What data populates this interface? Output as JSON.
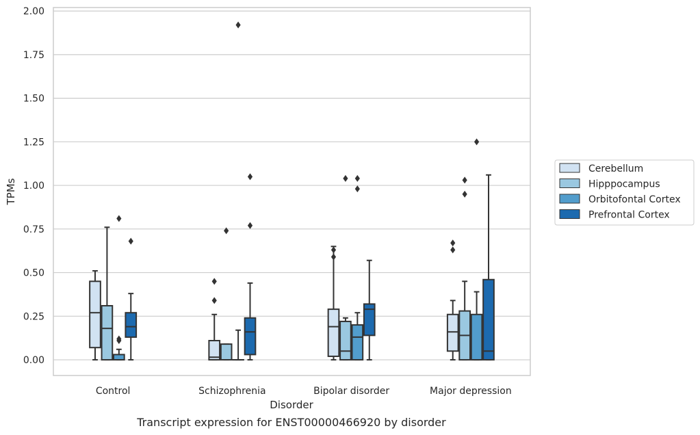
{
  "chart_data": {
    "type": "box",
    "title": "",
    "caption": "Transcript expression for ENST00000466920 by disorder",
    "xlabel": "Disorder",
    "ylabel": "TPMs",
    "ylim": [
      -0.09,
      2.02
    ],
    "yticks": [
      "0.00",
      "0.25",
      "0.50",
      "0.75",
      "1.00",
      "1.25",
      "1.50",
      "1.75",
      "2.00"
    ],
    "grid": "horizontal",
    "legend_position": "right",
    "categories": [
      "Control",
      "Schizophrenia",
      "Bipolar disorder",
      "Major depression"
    ],
    "series": [
      {
        "name": "Cerebellum",
        "color": "#d1e2f2",
        "boxes": [
          {
            "q1": 0.07,
            "median": 0.27,
            "q3": 0.45,
            "low": 0.0,
            "high": 0.51,
            "outliers": []
          },
          {
            "q1": 0.0,
            "median": 0.015,
            "q3": 0.11,
            "low": 0.0,
            "high": 0.26,
            "outliers": [
              0.34,
              0.45
            ]
          },
          {
            "q1": 0.02,
            "median": 0.19,
            "q3": 0.29,
            "low": 0.0,
            "high": 0.65,
            "outliers": [
              0.59,
              0.63
            ]
          },
          {
            "q1": 0.05,
            "median": 0.16,
            "q3": 0.26,
            "low": 0.0,
            "high": 0.34,
            "outliers": [
              0.63,
              0.67
            ]
          }
        ]
      },
      {
        "name": "Hipppocampus",
        "color": "#9ac8e0",
        "boxes": [
          {
            "q1": 0.0,
            "median": 0.18,
            "q3": 0.31,
            "low": 0.0,
            "high": 0.76,
            "outliers": []
          },
          {
            "q1": 0.0,
            "median": 0.0,
            "q3": 0.09,
            "low": 0.0,
            "high": 0.09,
            "outliers": [
              0.74
            ]
          },
          {
            "q1": 0.0,
            "median": 0.05,
            "q3": 0.22,
            "low": 0.0,
            "high": 0.24,
            "outliers": [
              1.04
            ]
          },
          {
            "q1": 0.0,
            "median": 0.14,
            "q3": 0.28,
            "low": 0.0,
            "high": 0.45,
            "outliers": [
              0.95,
              1.03
            ]
          }
        ]
      },
      {
        "name": "Orbitofontal Cortex",
        "color": "#529dcc",
        "boxes": [
          {
            "q1": 0.0,
            "median": 0.0,
            "q3": 0.03,
            "low": 0.0,
            "high": 0.06,
            "outliers": [
              0.11,
              0.12,
              0.81
            ]
          },
          {
            "q1": 0.0,
            "median": 0.0,
            "q3": 0.0,
            "low": 0.0,
            "high": 0.17,
            "outliers": [
              1.92
            ]
          },
          {
            "q1": 0.0,
            "median": 0.13,
            "q3": 0.2,
            "low": 0.0,
            "high": 0.27,
            "outliers": [
              0.98,
              1.04
            ]
          },
          {
            "q1": 0.0,
            "median": 0.0,
            "q3": 0.26,
            "low": 0.0,
            "high": 0.39,
            "outliers": [
              1.25
            ]
          }
        ]
      },
      {
        "name": "Prefrontal Cortex",
        "color": "#1c6aaf",
        "boxes": [
          {
            "q1": 0.13,
            "median": 0.19,
            "q3": 0.27,
            "low": 0.0,
            "high": 0.38,
            "outliers": [
              0.68
            ]
          },
          {
            "q1": 0.03,
            "median": 0.16,
            "q3": 0.24,
            "low": 0.0,
            "high": 0.44,
            "outliers": [
              0.77,
              1.05
            ]
          },
          {
            "q1": 0.14,
            "median": 0.29,
            "q3": 0.32,
            "low": 0.0,
            "high": 0.57,
            "outliers": []
          },
          {
            "q1": 0.0,
            "median": 0.05,
            "q3": 0.46,
            "low": 0.0,
            "high": 1.06,
            "outliers": []
          }
        ]
      }
    ]
  }
}
